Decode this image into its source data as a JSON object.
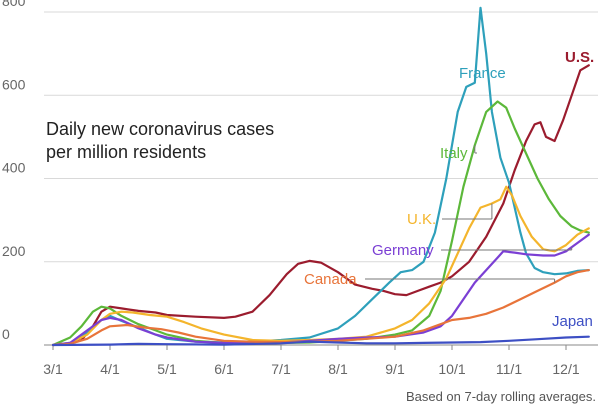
{
  "chart_data": {
    "type": "line",
    "title_lines": [
      "Daily new coronavirus cases",
      "per million residents"
    ],
    "note": "Based on 7-day rolling averages.",
    "x_tick_labels": [
      "3/1",
      "4/1",
      "5/1",
      "6/1",
      "7/1",
      "8/1",
      "9/1",
      "10/1",
      "11/1",
      "12/1"
    ],
    "x_range": [
      0,
      9.4
    ],
    "y_ticks": [
      0,
      200,
      400,
      600,
      800
    ],
    "y_tick_labels": [
      "0",
      "200",
      "400",
      "600",
      "800"
    ],
    "ylim": [
      0,
      800
    ],
    "series": [
      {
        "name": "U.S.",
        "color": "#9b1c2e",
        "bold": true,
        "points": [
          [
            0,
            0
          ],
          [
            0.3,
            3
          ],
          [
            0.5,
            12
          ],
          [
            0.7,
            45
          ],
          [
            0.85,
            80
          ],
          [
            1.0,
            92
          ],
          [
            1.2,
            88
          ],
          [
            1.5,
            82
          ],
          [
            1.8,
            78
          ],
          [
            2.0,
            72
          ],
          [
            2.5,
            68
          ],
          [
            3.0,
            65
          ],
          [
            3.2,
            68
          ],
          [
            3.5,
            80
          ],
          [
            3.8,
            120
          ],
          [
            4.1,
            170
          ],
          [
            4.3,
            195
          ],
          [
            4.5,
            202
          ],
          [
            4.7,
            198
          ],
          [
            5.0,
            175
          ],
          [
            5.3,
            145
          ],
          [
            5.6,
            135
          ],
          [
            5.8,
            130
          ],
          [
            6.0,
            122
          ],
          [
            6.2,
            120
          ],
          [
            6.4,
            130
          ],
          [
            6.6,
            140
          ],
          [
            6.8,
            150
          ],
          [
            7.0,
            165
          ],
          [
            7.3,
            200
          ],
          [
            7.6,
            260
          ],
          [
            7.9,
            340
          ],
          [
            8.1,
            420
          ],
          [
            8.3,
            490
          ],
          [
            8.45,
            530
          ],
          [
            8.55,
            535
          ],
          [
            8.65,
            500
          ],
          [
            8.8,
            490
          ],
          [
            8.95,
            540
          ],
          [
            9.1,
            600
          ],
          [
            9.25,
            660
          ],
          [
            9.4,
            672
          ]
        ]
      },
      {
        "name": "France",
        "color": "#2ea0bb",
        "points": [
          [
            0,
            0
          ],
          [
            0.3,
            5
          ],
          [
            0.6,
            30
          ],
          [
            0.85,
            60
          ],
          [
            1.0,
            70
          ],
          [
            1.2,
            58
          ],
          [
            1.5,
            42
          ],
          [
            1.8,
            25
          ],
          [
            2.0,
            15
          ],
          [
            2.5,
            8
          ],
          [
            3.0,
            6
          ],
          [
            3.5,
            8
          ],
          [
            4.0,
            12
          ],
          [
            4.5,
            18
          ],
          [
            5.0,
            40
          ],
          [
            5.3,
            70
          ],
          [
            5.6,
            110
          ],
          [
            5.9,
            150
          ],
          [
            6.1,
            175
          ],
          [
            6.3,
            180
          ],
          [
            6.5,
            200
          ],
          [
            6.7,
            270
          ],
          [
            6.9,
            400
          ],
          [
            7.1,
            560
          ],
          [
            7.25,
            620
          ],
          [
            7.4,
            630
          ],
          [
            7.5,
            810
          ],
          [
            7.6,
            700
          ],
          [
            7.7,
            560
          ],
          [
            7.85,
            450
          ],
          [
            8.0,
            390
          ],
          [
            8.1,
            330
          ],
          [
            8.2,
            270
          ],
          [
            8.3,
            220
          ],
          [
            8.45,
            185
          ],
          [
            8.6,
            175
          ],
          [
            8.8,
            170
          ],
          [
            9.0,
            172
          ],
          [
            9.2,
            178
          ],
          [
            9.4,
            180
          ]
        ]
      },
      {
        "name": "Italy",
        "color": "#5cb83a",
        "points": [
          [
            0,
            0
          ],
          [
            0.3,
            18
          ],
          [
            0.5,
            45
          ],
          [
            0.7,
            80
          ],
          [
            0.85,
            92
          ],
          [
            1.0,
            88
          ],
          [
            1.2,
            70
          ],
          [
            1.5,
            50
          ],
          [
            1.8,
            35
          ],
          [
            2.0,
            25
          ],
          [
            2.5,
            10
          ],
          [
            3.0,
            5
          ],
          [
            3.5,
            4
          ],
          [
            4.0,
            5
          ],
          [
            4.5,
            6
          ],
          [
            5.0,
            10
          ],
          [
            5.5,
            15
          ],
          [
            6.0,
            25
          ],
          [
            6.3,
            35
          ],
          [
            6.6,
            70
          ],
          [
            6.8,
            130
          ],
          [
            7.0,
            250
          ],
          [
            7.2,
            380
          ],
          [
            7.4,
            480
          ],
          [
            7.6,
            560
          ],
          [
            7.8,
            585
          ],
          [
            7.95,
            570
          ],
          [
            8.1,
            520
          ],
          [
            8.3,
            460
          ],
          [
            8.5,
            400
          ],
          [
            8.7,
            350
          ],
          [
            8.9,
            310
          ],
          [
            9.1,
            285
          ],
          [
            9.25,
            275
          ],
          [
            9.4,
            270
          ]
        ]
      },
      {
        "name": "U.K.",
        "color": "#f4b52c",
        "points": [
          [
            0,
            0
          ],
          [
            0.3,
            5
          ],
          [
            0.6,
            25
          ],
          [
            0.85,
            60
          ],
          [
            1.0,
            75
          ],
          [
            1.2,
            80
          ],
          [
            1.4,
            78
          ],
          [
            1.7,
            72
          ],
          [
            2.0,
            68
          ],
          [
            2.3,
            55
          ],
          [
            2.6,
            40
          ],
          [
            3.0,
            25
          ],
          [
            3.5,
            12
          ],
          [
            4.0,
            10
          ],
          [
            4.5,
            12
          ],
          [
            5.0,
            15
          ],
          [
            5.5,
            20
          ],
          [
            6.0,
            40
          ],
          [
            6.3,
            60
          ],
          [
            6.6,
            100
          ],
          [
            6.9,
            160
          ],
          [
            7.1,
            220
          ],
          [
            7.3,
            280
          ],
          [
            7.5,
            330
          ],
          [
            7.7,
            340
          ],
          [
            7.85,
            350
          ],
          [
            7.95,
            380
          ],
          [
            8.05,
            360
          ],
          [
            8.2,
            310
          ],
          [
            8.4,
            260
          ],
          [
            8.6,
            230
          ],
          [
            8.8,
            225
          ],
          [
            9.0,
            240
          ],
          [
            9.2,
            265
          ],
          [
            9.4,
            280
          ]
        ]
      },
      {
        "name": "Germany",
        "color": "#7b3fd4",
        "points": [
          [
            0,
            0
          ],
          [
            0.3,
            5
          ],
          [
            0.6,
            35
          ],
          [
            0.85,
            60
          ],
          [
            1.0,
            65
          ],
          [
            1.2,
            60
          ],
          [
            1.5,
            40
          ],
          [
            1.8,
            25
          ],
          [
            2.0,
            18
          ],
          [
            2.5,
            8
          ],
          [
            3.0,
            5
          ],
          [
            3.5,
            5
          ],
          [
            4.0,
            6
          ],
          [
            4.5,
            10
          ],
          [
            5.0,
            15
          ],
          [
            5.5,
            18
          ],
          [
            6.0,
            20
          ],
          [
            6.5,
            30
          ],
          [
            6.8,
            45
          ],
          [
            7.0,
            70
          ],
          [
            7.2,
            110
          ],
          [
            7.4,
            150
          ],
          [
            7.6,
            180
          ],
          [
            7.8,
            210
          ],
          [
            7.9,
            225
          ],
          [
            8.1,
            222
          ],
          [
            8.3,
            218
          ],
          [
            8.6,
            215
          ],
          [
            8.8,
            215
          ],
          [
            9.0,
            225
          ],
          [
            9.2,
            245
          ],
          [
            9.4,
            265
          ]
        ]
      },
      {
        "name": "Canada",
        "color": "#e8743a",
        "points": [
          [
            0,
            0
          ],
          [
            0.3,
            3
          ],
          [
            0.6,
            15
          ],
          [
            0.85,
            35
          ],
          [
            1.0,
            45
          ],
          [
            1.3,
            48
          ],
          [
            1.6,
            42
          ],
          [
            1.9,
            38
          ],
          [
            2.2,
            30
          ],
          [
            2.5,
            20
          ],
          [
            3.0,
            10
          ],
          [
            3.5,
            8
          ],
          [
            4.0,
            7
          ],
          [
            4.5,
            8
          ],
          [
            5.0,
            10
          ],
          [
            5.5,
            15
          ],
          [
            6.0,
            20
          ],
          [
            6.5,
            35
          ],
          [
            6.8,
            50
          ],
          [
            7.0,
            60
          ],
          [
            7.3,
            65
          ],
          [
            7.6,
            75
          ],
          [
            7.9,
            90
          ],
          [
            8.2,
            110
          ],
          [
            8.5,
            130
          ],
          [
            8.8,
            150
          ],
          [
            9.0,
            165
          ],
          [
            9.2,
            175
          ],
          [
            9.4,
            180
          ]
        ]
      },
      {
        "name": "Japan",
        "color": "#3d4fc4",
        "points": [
          [
            0,
            0
          ],
          [
            1.0,
            1
          ],
          [
            1.5,
            3
          ],
          [
            2.0,
            2
          ],
          [
            3.0,
            1
          ],
          [
            4.0,
            4
          ],
          [
            4.5,
            8
          ],
          [
            5.0,
            6
          ],
          [
            5.5,
            4
          ],
          [
            6.0,
            4
          ],
          [
            6.5,
            5
          ],
          [
            7.0,
            6
          ],
          [
            7.5,
            7
          ],
          [
            8.0,
            10
          ],
          [
            8.5,
            14
          ],
          [
            9.0,
            18
          ],
          [
            9.4,
            20
          ]
        ]
      }
    ],
    "labels": [
      {
        "series": "U.S.",
        "text": "U.S.",
        "leader": false
      },
      {
        "series": "France",
        "text": "France",
        "leader": false
      },
      {
        "series": "Italy",
        "text": "Italy",
        "leader": true,
        "leader_x": 7.4
      },
      {
        "series": "U.K.",
        "text": "U.K.",
        "leader": true,
        "leader_x": 7.7
      },
      {
        "series": "Germany",
        "text": "Germany",
        "leader": true,
        "leader_x": 9.1
      },
      {
        "series": "Canada",
        "text": "Canada",
        "leader": true,
        "leader_x": 8.8
      },
      {
        "series": "Japan",
        "text": "Japan",
        "leader": false
      }
    ]
  }
}
